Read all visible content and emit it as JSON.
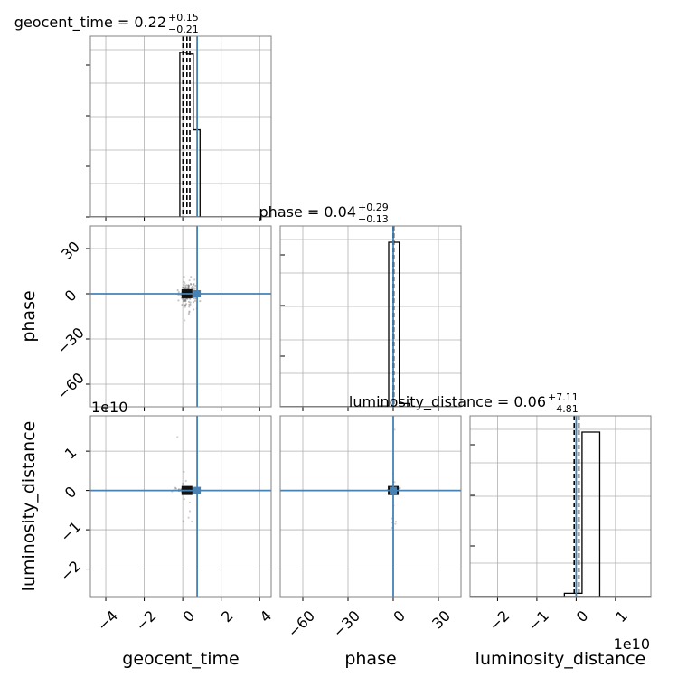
{
  "chart_data": {
    "type": "corner",
    "parameters": [
      "geocent_time",
      "phase",
      "luminosity_distance"
    ],
    "axis_labels": [
      "geocent_time",
      "phase",
      "luminosity_distance"
    ],
    "truths": [
      0.75,
      0.0,
      0.0
    ],
    "truth_color": "#4682b4",
    "axis_offsets": {
      "luminosity_distance": "1e10"
    },
    "ranges": {
      "geocent_time": [
        -4.8,
        4.6
      ],
      "phase": [
        -75,
        45
      ],
      "luminosity_distance": [
        -2.7,
        1.9
      ]
    },
    "ticks": {
      "geocent_time": [
        -4,
        -2,
        0,
        2,
        4
      ],
      "phase": [
        -60,
        -30,
        0,
        30
      ],
      "luminosity_distance": [
        -2,
        -1,
        0,
        1
      ]
    },
    "tick_labels": {
      "geocent_time": [
        "−4",
        "−2",
        "0",
        "2",
        "4"
      ],
      "phase": [
        "−60",
        "−30",
        "0",
        "30"
      ],
      "luminosity_distance": [
        "−2",
        "−1",
        "0",
        "1"
      ]
    },
    "marginal_titles": [
      {
        "param": "geocent_time",
        "prefix": "geocent_time = ",
        "median": "0.22",
        "plus": "+0.15",
        "minus": "−0.21"
      },
      {
        "param": "phase",
        "prefix": "phase = ",
        "median": "0.04",
        "plus": "+0.29",
        "minus": "−0.13"
      },
      {
        "param": "luminosity_distance",
        "prefix": "luminosity_distance = ",
        "median": "0.06",
        "plus": "+7.11",
        "minus": "−4.81"
      }
    ],
    "quantile_lines": {
      "geocent_time": [
        0.01,
        0.22,
        0.37
      ],
      "phase": [
        -0.09,
        0.04,
        0.33
      ],
      "luminosity_distance": [
        -0.05,
        0.0,
        0.07
      ]
    },
    "histograms": {
      "geocent_time": {
        "edges": [
          -0.15,
          0.2,
          0.55,
          0.9
        ],
        "counts": [
          1.0,
          0.99,
          0.53
        ]
      },
      "phase": {
        "edges": [
          -10,
          -3,
          4,
          11
        ],
        "counts": [
          0.004,
          1.0,
          0.02
        ]
      },
      "luminosity_distance": {
        "edges": [
          -0.3,
          0.15,
          0.6
        ],
        "counts": [
          0.02,
          1.0
        ]
      }
    },
    "grid": true
  }
}
